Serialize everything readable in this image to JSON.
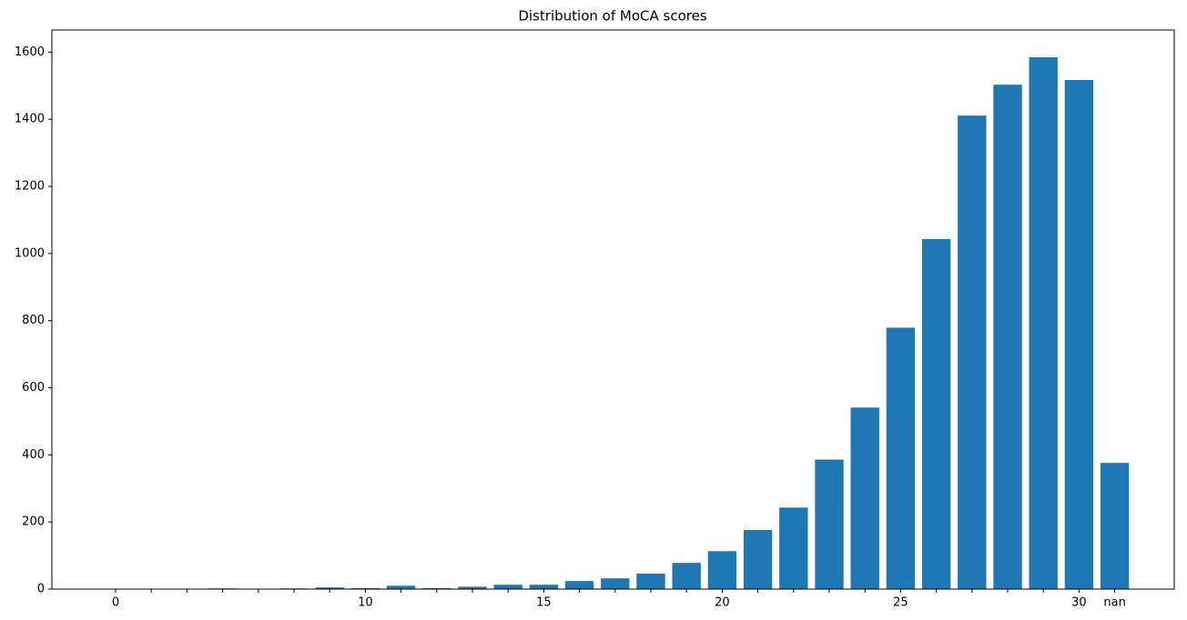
{
  "chart_data": {
    "type": "bar",
    "title": "Distribution of MoCA scores",
    "categories": [
      "0",
      null,
      null,
      null,
      null,
      null,
      null,
      "10",
      null,
      null,
      null,
      null,
      "15",
      null,
      null,
      null,
      null,
      "20",
      null,
      null,
      null,
      null,
      "25",
      null,
      null,
      null,
      null,
      "30",
      "nan"
    ],
    "values": [
      0,
      0,
      0,
      2,
      0,
      2,
      5,
      3,
      10,
      3,
      7,
      13,
      13,
      24,
      32,
      46,
      78,
      113,
      176,
      243,
      386,
      541,
      779,
      1043,
      1411,
      1503,
      1585,
      1517,
      376
    ],
    "color": "#1f77b4",
    "ylim": [
      0,
      1666
    ],
    "yticks": [
      0,
      200,
      400,
      600,
      800,
      1000,
      1200,
      1400,
      1600
    ],
    "grid": false
  }
}
